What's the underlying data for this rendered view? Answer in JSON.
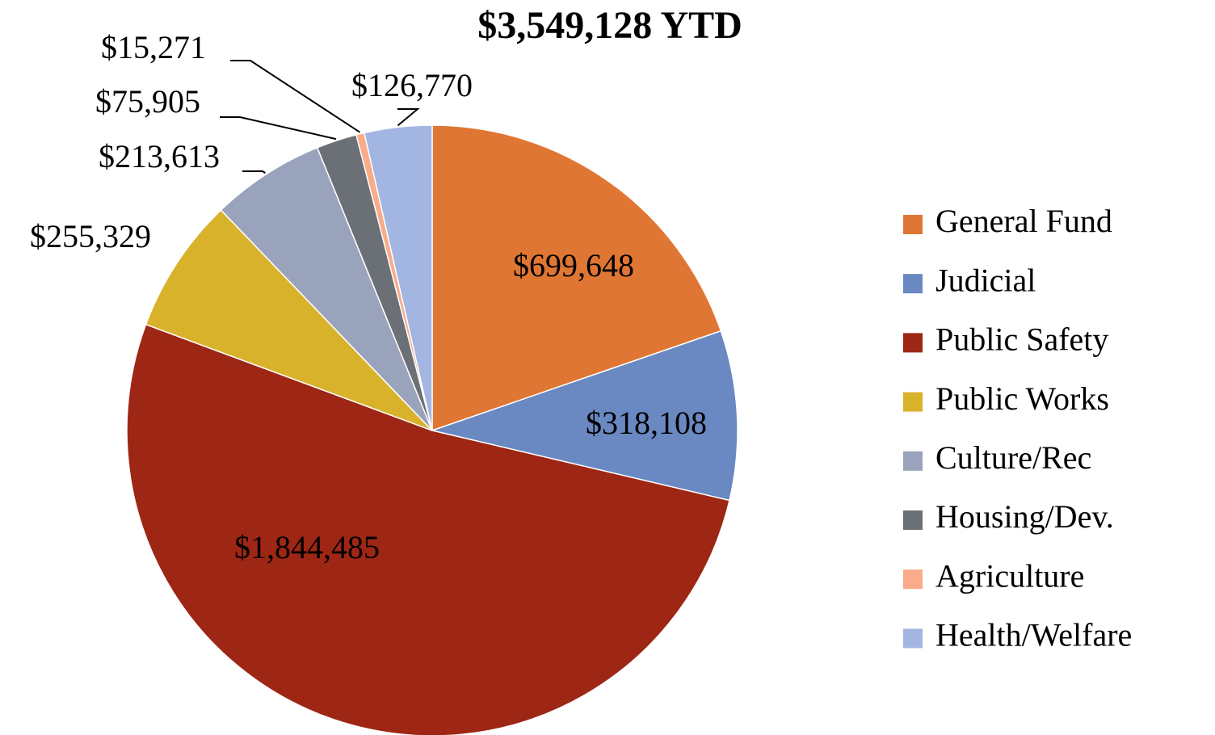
{
  "chart_data": {
    "type": "pie",
    "title": "$3,549,128 YTD",
    "categories": [
      "General Fund",
      "Judicial",
      "Public Safety",
      "Public Works",
      "Culture/Rec",
      "Housing/Dev.",
      "Agriculture",
      "Health/Welfare"
    ],
    "values": [
      699648,
      318108,
      1844485,
      255329,
      213613,
      75905,
      15271,
      126770
    ],
    "value_labels": [
      "$699,648",
      "$318,108",
      "$1,844,485",
      "$255,329",
      "$213,613",
      "$75,905",
      "$15,271",
      "$126,770"
    ],
    "colors": [
      "#e07634",
      "#6a88c2",
      "#9e2614",
      "#d9b22b",
      "#99a3bb",
      "#6b6f76",
      "#f9ab8a",
      "#a3b5e1"
    ],
    "legend": "right"
  }
}
